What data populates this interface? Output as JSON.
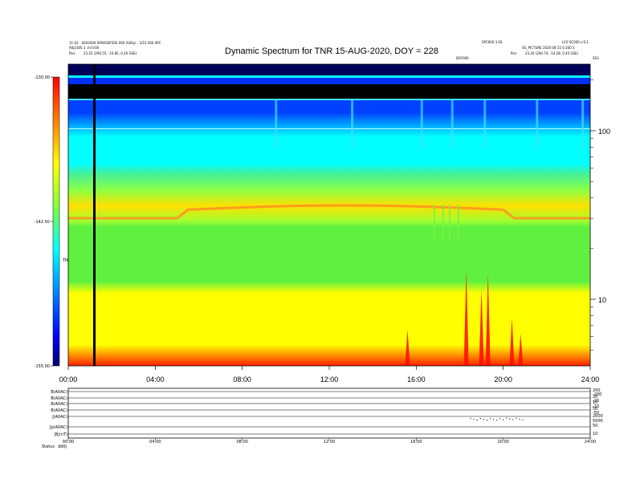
{
  "header": {
    "left_line1": "11-02 - 0002000 SPADSSP3SS 0S0 (SS0y) - 2/1S 0S0 SPC",
    "left_line2": "A0j1S0S 3 :m:0:00",
    "left_line3_label": "Pos:",
    "left_line3_value": "23.25 (294.55, -10.85, 0.20 GSE)",
    "right_top_left": "SPC000 3.0S",
    "right_top_right": "LC0 SC0S0 s:S:1",
    "right_line2": "SG_PICTURE  2020 08 15 S:3S0:3",
    "right_line3_label": "Pos:",
    "right_line3_value": "23.20 (294.74, -14.28, 0.45 GSE)",
    "mid_small": "DSY000",
    "corner_small": "SS3"
  },
  "chart_data": {
    "type": "heatmap",
    "title": "Dynamic Spectrum for TNR 15-AUG-2020, DOY = 228",
    "xlabel": "",
    "ylabel": "",
    "x_ticks": [
      "00:00",
      "04:00",
      "08:00",
      "12:00",
      "16:00",
      "20:00",
      "24:00"
    ],
    "xlim_hours": [
      0,
      24
    ],
    "y_scale": "log",
    "y_ticks": [
      "100",
      "10"
    ],
    "colorbar": {
      "ticks": [
        "-130.00",
        "-142.50",
        "-155.00"
      ],
      "range": [
        -155,
        -130
      ],
      "label": "TNR",
      "colors": [
        "#00008b",
        "#0000ff",
        "#0070ff",
        "#00ffff",
        "#40ff80",
        "#80ff40",
        "#ffff00",
        "#ffb000",
        "#ff4000",
        "#ff0000"
      ]
    },
    "bands_top_to_bottom": [
      {
        "band": "top",
        "level": -130,
        "color": "#000060"
      },
      {
        "band": "upper",
        "level": -132,
        "color": "#0030ff"
      },
      {
        "band": "high",
        "level": -136,
        "color": "#00ffff"
      },
      {
        "band": "mid",
        "level": -143,
        "color": "#60f040"
      },
      {
        "band": "low",
        "level": -148,
        "color": "#ffff00"
      },
      {
        "band": "bottom",
        "level": -155,
        "color": "#ff2000"
      }
    ],
    "annotations": [
      {
        "type": "vertical-line",
        "hour": 1.2
      }
    ],
    "bursts_hours": [
      15.6,
      18.3,
      19.0,
      19.3,
      20.4,
      20.8
    ]
  },
  "panel2": {
    "row_labels": [
      "B(A0AC)",
      "B(A0AC)",
      "B(A0AC)",
      "B(A0AC)",
      "J(A0AC)",
      "Jp(A0AC)",
      "|B|(nT)"
    ],
    "right_labels": [
      "200",
      "-200",
      "20",
      "-20",
      "10",
      "-10",
      "50",
      "-50",
      "2000",
      "5000",
      "50",
      "10"
    ],
    "x_ticks": [
      "00:00",
      "04:00",
      "08:00",
      "12:00",
      "16:00",
      "20:00",
      "24:00"
    ],
    "footer_label": "Status",
    "footer_value": "dd0j"
  }
}
